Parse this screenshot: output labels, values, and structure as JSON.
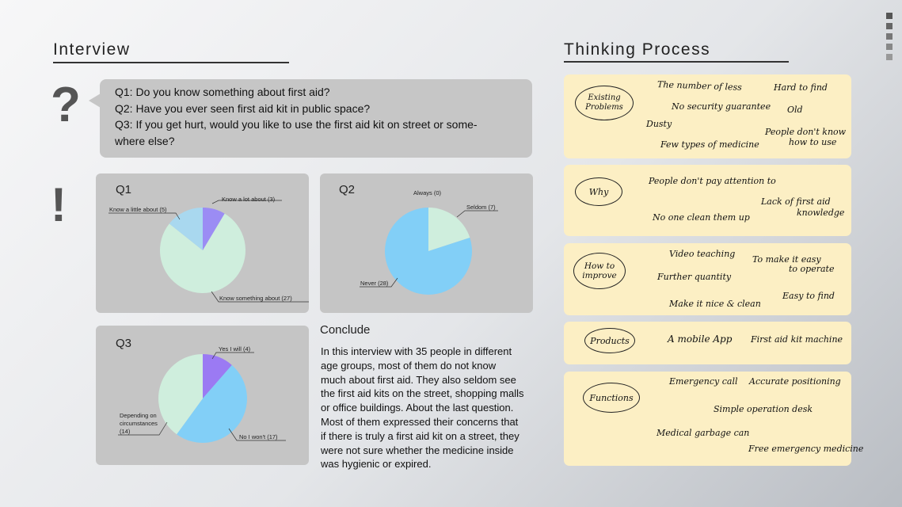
{
  "interview": {
    "title": "Interview",
    "question_mark": "?",
    "exclaim_mark": "!",
    "questions": [
      "Q1: Do you know something about first aid?",
      "Q2: Have you ever seen first aid kit in public space?",
      "Q3: If you get hurt, would you like to use the first aid kit on street or some-",
      "where else?"
    ]
  },
  "charts": {
    "q1": {
      "title": "Q1"
    },
    "q2": {
      "title": "Q2"
    },
    "q3": {
      "title": "Q3"
    }
  },
  "chart_data": [
    {
      "type": "pie",
      "title": "Q1",
      "slices": [
        {
          "label": "Know a lot about (3)",
          "value": 3,
          "color": "#9b8cf4"
        },
        {
          "label": "Know something about (27)",
          "value": 27,
          "color": "#cfeedd"
        },
        {
          "label": "Know a little about (5)",
          "value": 5,
          "color": "#a9d8ef"
        }
      ]
    },
    {
      "type": "pie",
      "title": "Q2",
      "slices": [
        {
          "label": "Always (0)",
          "value": 0,
          "color": "#9b8cf4"
        },
        {
          "label": "Seldom (7)",
          "value": 7,
          "color": "#cfeedd"
        },
        {
          "label": "Never (28)",
          "value": 28,
          "color": "#82cff7"
        }
      ]
    },
    {
      "type": "pie",
      "title": "Q3",
      "slices": [
        {
          "label": "Yes I will (4)",
          "value": 4,
          "color": "#9b7af3"
        },
        {
          "label": "No I won't (17)",
          "value": 17,
          "color": "#82cff7"
        },
        {
          "label": "Depending on circumstances (14)",
          "value": 14,
          "color": "#cfeedd"
        }
      ]
    }
  ],
  "conclude": {
    "title": "Conclude",
    "lines": [
      "In this interview with 35 people in different",
      "age groups, most of them do not know",
      "much about first aid. They also seldom see",
      "the first aid kits on the street, shopping malls",
      "or office buildings. About the last question.",
      "Most of them expressed their concerns that",
      "if there is truly a first aid kit on a street, they",
      "were not sure whether the medicine inside",
      "was hygienic or expired."
    ]
  },
  "thinking": {
    "title": "Thinking Process",
    "existing": {
      "label_lines": [
        "Existing",
        "Problems"
      ],
      "notes": [
        "The number of less",
        "Hard to find",
        "No security guarantee",
        "Old",
        "Dusty",
        "People don't know",
        "how to use",
        "Few types of medicine"
      ]
    },
    "why": {
      "label": "Why",
      "notes": [
        "People don't pay attention to",
        "Lack of first aid",
        "knowledge",
        "No one clean them up"
      ]
    },
    "improve": {
      "label_lines": [
        "How to",
        "improve"
      ],
      "notes": [
        "Video teaching",
        "To make it easy",
        "to operate",
        "Further quantity",
        "Easy to find",
        "Make it nice & clean"
      ]
    },
    "products": {
      "label": "Products",
      "notes": [
        "A mobile App",
        "First aid kit machine"
      ]
    },
    "functions": {
      "label": "Functions",
      "notes": [
        "Emergency call",
        "Accurate positioning",
        "Simple operation desk",
        "Medical garbage can",
        "Free emergency medicine"
      ]
    }
  },
  "colors": {
    "note_bg": "#fcefc4",
    "panel_bg": "#c5c5c5",
    "side_squares": "#6b6b6b"
  }
}
